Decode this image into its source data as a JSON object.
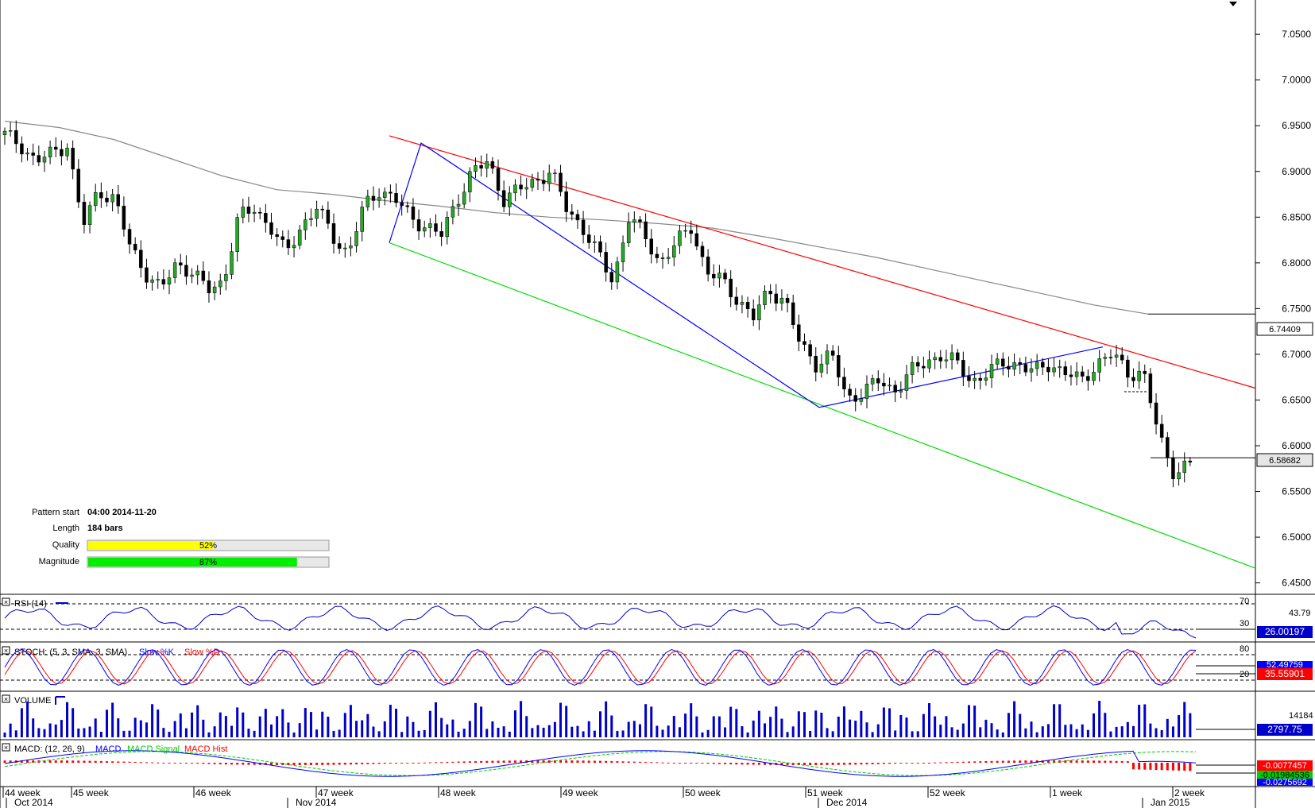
{
  "chart_data": {
    "type": "candlestick",
    "price_axis": {
      "range": [
        6.4375,
        7.0875
      ],
      "ticks": [
        "7.0500",
        "7.0000",
        "6.9500",
        "6.9000",
        "6.8500",
        "6.8000",
        "6.7500",
        "6.7000",
        "6.6500",
        "6.6000",
        "6.5500",
        "6.5000",
        "6.4500"
      ],
      "current_price_label": "6.58682",
      "ma_label": "6.74409"
    },
    "moving_average": [
      6.955,
      6.948,
      6.935,
      6.915,
      6.895,
      6.88,
      6.875,
      6.868,
      6.862,
      6.855,
      6.85,
      6.847,
      6.843,
      6.838,
      6.828,
      6.817,
      6.806,
      6.793,
      6.78,
      6.767,
      6.754,
      6.744
    ],
    "ohlc_close": [
      6.94,
      6.93,
      6.91,
      6.92,
      6.93,
      6.84,
      6.88,
      6.87,
      6.82,
      6.79,
      6.77,
      6.8,
      6.79,
      6.77,
      6.78,
      6.85,
      6.86,
      6.84,
      6.81,
      6.84,
      6.86,
      6.83,
      6.81,
      6.86,
      6.88,
      6.87,
      6.85,
      6.84,
      6.83,
      6.87,
      6.9,
      6.91,
      6.87,
      6.88,
      6.89,
      6.9,
      6.86,
      6.84,
      6.81,
      6.78,
      6.85,
      6.83,
      6.8,
      6.82,
      6.84,
      6.79,
      6.78,
      6.76,
      6.74,
      6.77,
      6.76,
      6.71,
      6.69,
      6.7,
      6.65,
      6.66,
      6.67,
      6.66,
      6.68,
      6.69,
      6.7,
      6.69,
      6.67,
      6.68,
      6.69,
      6.69,
      6.68,
      6.69,
      6.68,
      6.67,
      6.69,
      6.7,
      6.68,
      6.68,
      6.61,
      6.57,
      6.58
    ],
    "pattern": {
      "upper_line": "red",
      "lower_line": "green",
      "zigzag": "blue"
    },
    "pattern_info": {
      "pattern_start_label": "Pattern start",
      "pattern_start_value": "04:00 2014-11-20",
      "length_label": "Length",
      "length_value": "184 bars",
      "quality_label": "Quality",
      "quality_pct": 52,
      "quality_text": "52%",
      "magnitude_label": "Magnitude",
      "magnitude_pct": 87,
      "magnitude_text": "87%"
    },
    "x_axis": {
      "weeks": [
        "44 week",
        "45 week",
        "46 week",
        "47 week",
        "48 week",
        "49 week",
        "50 week",
        "51 week",
        "52 week",
        "1 week",
        "2 week"
      ],
      "months": [
        "Oct 2014",
        "Nov 2014",
        "Dec 2014",
        "Jan 2015"
      ]
    },
    "indicators": {
      "rsi": {
        "label": "RSI (14)",
        "level_high": "70",
        "level_low": "30",
        "value_top": "43.79",
        "value": "26.00197"
      },
      "stoch": {
        "label_prefix": "STOCH: (5, 3, SMA, 3, SMA)",
        "k_label": "Slow %K",
        "d_label": "Slow %D",
        "level_high": "80",
        "level_low": "20",
        "value_k": "52.49759",
        "value_d": "35.55901"
      },
      "volume": {
        "label": "VOLUME",
        "max_label": "14184",
        "value": "2797.75"
      },
      "macd": {
        "label_prefix": "MACD: (12, 26, 9)",
        "macd_label": "MACD",
        "signal_label": "MACD Signal",
        "hist_label": "MACD Hist",
        "value_hist": "-0.0077457",
        "value_signal": "-0.01984536",
        "value_macd": "-0.0275692"
      }
    },
    "colors": {
      "up": "#2aa52a",
      "down": "#000000",
      "upper": "#ff0000",
      "lower": "#00dd00",
      "zigzag": "#0000ff",
      "ma": "#808080",
      "rsi": "#0000cc",
      "stoch_k": "#0000ff",
      "stoch_d": "#ff0000",
      "volume": "#0000cc",
      "macd": "#0000ff",
      "signal": "#00cc00",
      "hist": "#ff0000",
      "quality": "#ffff00",
      "magnitude": "#00ee00"
    }
  }
}
